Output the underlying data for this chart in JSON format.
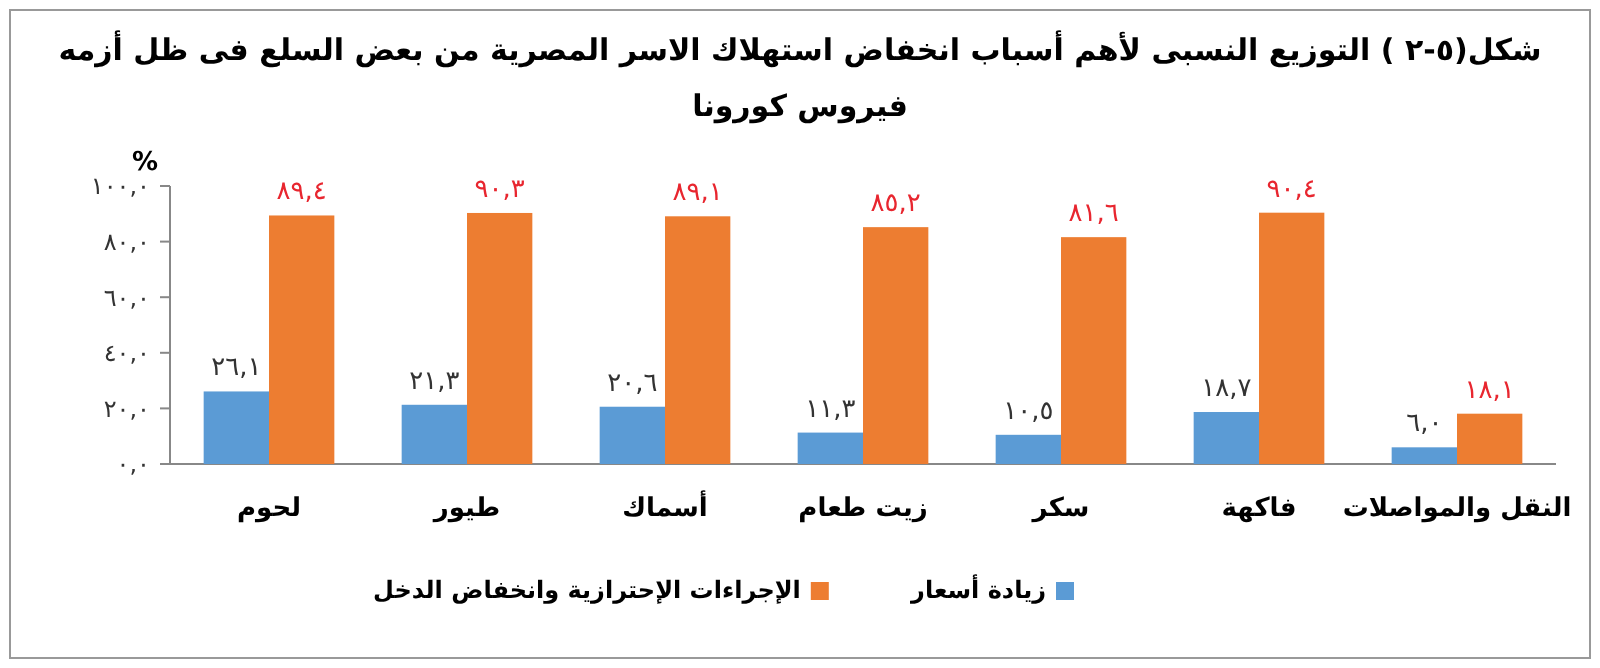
{
  "chart_data": {
    "type": "bar",
    "title": "شكل(٥-٢ ) التوزيع النسبى لأهم أسباب انخفاض استهلاك الاسر المصرية من بعض السلع فى ظل أزمه فيروس كورونا",
    "ylabel": "%",
    "categories": [
      "لحوم",
      "طيور",
      "أسماك",
      "زيت طعام",
      "سكر",
      "فاكهة",
      "النقل والمواصلات"
    ],
    "series": [
      {
        "name": "زيادة أسعار",
        "color": "#5b9bd5",
        "values": [
          26.1,
          21.3,
          20.6,
          11.3,
          10.5,
          18.7,
          6.0
        ],
        "value_labels": [
          "٢٦,١",
          "٢١,٣",
          "٢٠,٦",
          "١١,٣",
          "١٠,٥",
          "١٨,٧",
          "٦,٠"
        ]
      },
      {
        "name": "الإجراءات الإحترازية وانخفاض الدخل",
        "color": "#ed7d31",
        "values": [
          89.4,
          90.3,
          89.1,
          85.2,
          81.6,
          90.4,
          18.1
        ],
        "value_labels": [
          "٨٩,٤",
          "٩٠,٣",
          "٨٩,١",
          "٨٥,٢",
          "٨١,٦",
          "٩٠,٤",
          "١٨,١"
        ]
      }
    ],
    "ylim": [
      0,
      100
    ],
    "yticks": [
      {
        "value": 0,
        "label": "٠,٠"
      },
      {
        "value": 20,
        "label": "٢٠,٠"
      },
      {
        "value": 40,
        "label": "٤٠,٠"
      },
      {
        "value": 60,
        "label": "٦٠,٠"
      },
      {
        "value": 80,
        "label": "٨٠,٠"
      },
      {
        "value": 100,
        "label": "١٠٠,٠"
      }
    ],
    "grid": false,
    "legend": "bottom"
  }
}
